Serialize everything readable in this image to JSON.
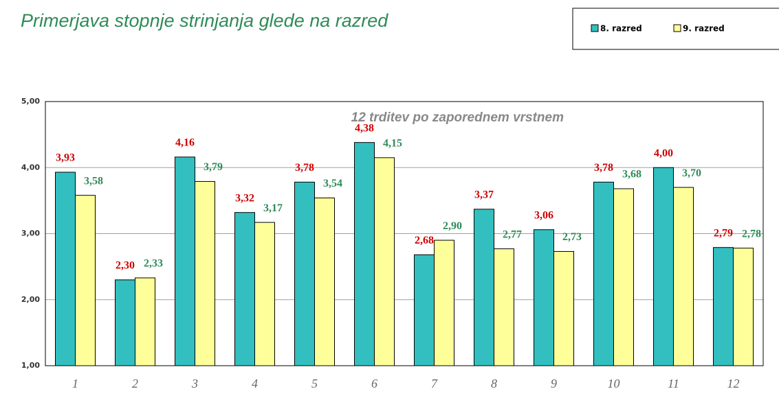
{
  "chart_data": {
    "type": "bar",
    "title": "Primerjava stopnje strinjanja glede na razred",
    "annotation": "12  trditev po zaporednem vrstnem",
    "categories": [
      "1",
      "2",
      "3",
      "4",
      "5",
      "6",
      "7",
      "8",
      "9",
      "10",
      "11",
      "12"
    ],
    "series": [
      {
        "name": "8. razred",
        "color": "#33bfbf",
        "label_color": "#d00000",
        "values": [
          3.93,
          2.3,
          4.16,
          3.32,
          3.78,
          4.38,
          2.68,
          3.37,
          3.06,
          3.78,
          4.0,
          2.79
        ],
        "value_labels": [
          "3,93",
          "2,30",
          "4,16",
          "3,32",
          "3,78",
          "4,38",
          "2,68",
          "3,37",
          "3,06",
          "3,78",
          "4,00",
          "2,79"
        ]
      },
      {
        "name": "9. razred",
        "color": "#ffff99",
        "label_color": "#2e8b57",
        "values": [
          3.58,
          2.33,
          3.79,
          3.17,
          3.54,
          4.15,
          2.9,
          2.77,
          2.73,
          3.68,
          3.7,
          2.78
        ],
        "value_labels": [
          "3,58",
          "2,33",
          "3,79",
          "3,17",
          "3,54",
          "4,15",
          "2,90",
          "2,77",
          "2,73",
          "3,68",
          "3,70",
          "2,78"
        ]
      }
    ],
    "ylim": [
      1,
      5
    ],
    "yticks": [
      {
        "value": 1,
        "label": "1,00"
      },
      {
        "value": 2,
        "label": "2,00"
      },
      {
        "value": 3,
        "label": "3,00"
      },
      {
        "value": 4,
        "label": "4,00"
      },
      {
        "value": 5,
        "label": "5,00"
      }
    ],
    "grid": true,
    "legend": "top-right"
  }
}
